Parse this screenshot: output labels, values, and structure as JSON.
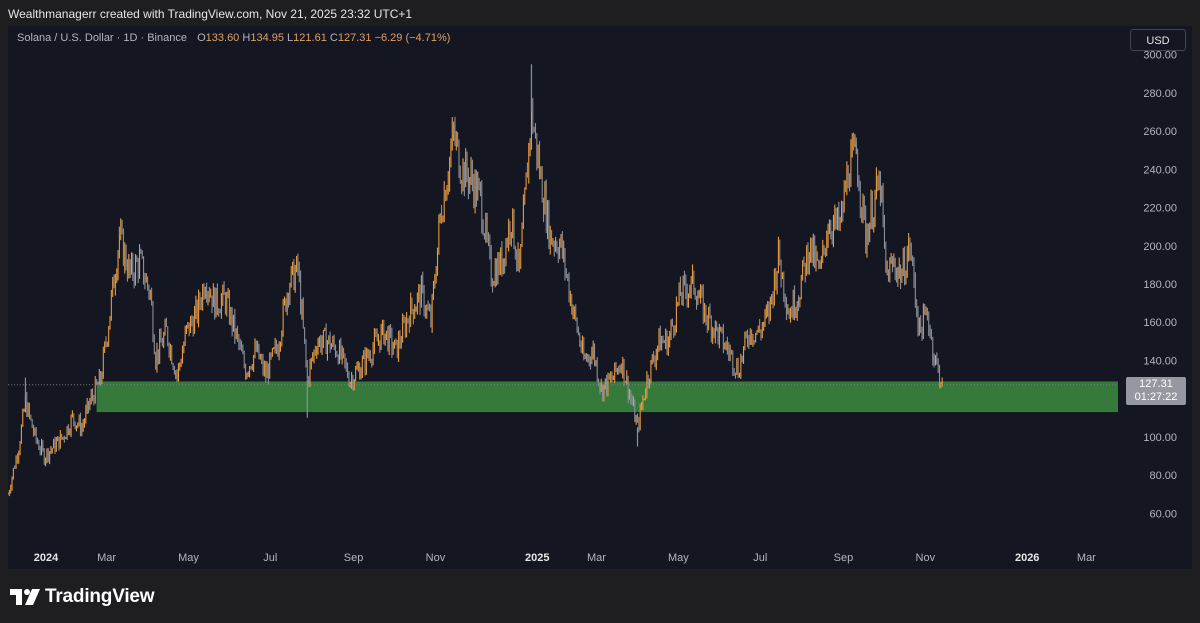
{
  "header": {
    "credit": "Wealthmanagerr created with TradingView.com, Nov 21, 2025 23:32 UTC+1"
  },
  "legend": {
    "symbol": "Solana / U.S. Dollar · 1D · Binance",
    "open_label": "O",
    "open": "133.60",
    "high_label": "H",
    "high": "134.95",
    "low_label": "L",
    "low": "121.61",
    "close_label": "C",
    "close": "127.31",
    "change": "−6.29 (−4.71%)"
  },
  "currency_button": "USD",
  "price_tag": {
    "price": "127.31",
    "countdown": "01:27:22"
  },
  "brand": {
    "name": "TradingView"
  },
  "colors": {
    "background": "#141722",
    "candle": "#e89a3c",
    "wick": "#8a8f9c",
    "zone": "#3b8c3e",
    "grid_text": "#b2b5be"
  },
  "chart_data": {
    "type": "line",
    "series_style": "ohlc-bars",
    "ylim": [
      45,
      315
    ],
    "y_ticks": [
      60,
      80,
      100,
      120,
      140,
      160,
      180,
      200,
      220,
      240,
      260,
      280,
      300
    ],
    "y_tick_labels": [
      "60.00",
      "80.00",
      "100.00",
      "",
      "140.00",
      "160.00",
      "180.00",
      "200.00",
      "220.00",
      "240.00",
      "260.00",
      "280.00",
      "300.00"
    ],
    "x_range": [
      "2023-12-26",
      "2026-04-01"
    ],
    "x_ticks": [
      {
        "date": "2024-01-01",
        "label": "2024",
        "bold": true
      },
      {
        "date": "2024-03-01",
        "label": "Mar"
      },
      {
        "date": "2024-05-01",
        "label": "May"
      },
      {
        "date": "2024-07-01",
        "label": "Jul"
      },
      {
        "date": "2024-09-01",
        "label": "Sep"
      },
      {
        "date": "2024-11-01",
        "label": "Nov"
      },
      {
        "date": "2025-01-01",
        "label": "2025",
        "bold": true
      },
      {
        "date": "2025-03-01",
        "label": "Mar"
      },
      {
        "date": "2025-05-01",
        "label": "May"
      },
      {
        "date": "2025-07-01",
        "label": "Jul"
      },
      {
        "date": "2025-09-01",
        "label": "Sep"
      },
      {
        "date": "2025-11-01",
        "label": "Nov"
      },
      {
        "date": "2026-01-01",
        "label": "2026",
        "bold": true
      },
      {
        "date": "2026-03-01",
        "label": "Mar"
      }
    ],
    "support_zone": {
      "from_date": "2024-03-01",
      "low": 113,
      "high": 129
    },
    "last_price": 127.31,
    "price_path": [
      [
        "2023-12-26",
        70
      ],
      [
        "2024-01-03",
        95
      ],
      [
        "2024-01-08",
        118
      ],
      [
        "2024-01-15",
        100
      ],
      [
        "2024-01-22",
        90
      ],
      [
        "2024-01-29",
        95
      ],
      [
        "2024-02-05",
        100
      ],
      [
        "2024-02-12",
        110
      ],
      [
        "2024-02-19",
        105
      ],
      [
        "2024-02-26",
        120
      ],
      [
        "2024-03-04",
        130
      ],
      [
        "2024-03-10",
        160
      ],
      [
        "2024-03-18",
        205
      ],
      [
        "2024-03-26",
        185
      ],
      [
        "2024-04-02",
        192
      ],
      [
        "2024-04-10",
        175
      ],
      [
        "2024-04-14",
        142
      ],
      [
        "2024-04-22",
        155
      ],
      [
        "2024-04-30",
        132
      ],
      [
        "2024-05-07",
        155
      ],
      [
        "2024-05-15",
        165
      ],
      [
        "2024-05-21",
        183
      ],
      [
        "2024-05-28",
        170
      ],
      [
        "2024-06-05",
        172
      ],
      [
        "2024-06-12",
        155
      ],
      [
        "2024-06-20",
        135
      ],
      [
        "2024-06-28",
        145
      ],
      [
        "2024-07-05",
        132
      ],
      [
        "2024-07-14",
        148
      ],
      [
        "2024-07-22",
        180
      ],
      [
        "2024-07-29",
        188
      ],
      [
        "2024-08-05",
        130
      ],
      [
        "2024-08-12",
        150
      ],
      [
        "2024-08-20",
        150
      ],
      [
        "2024-08-28",
        145
      ],
      [
        "2024-09-06",
        130
      ],
      [
        "2024-09-15",
        138
      ],
      [
        "2024-09-24",
        148
      ],
      [
        "2024-10-01",
        155
      ],
      [
        "2024-10-10",
        145
      ],
      [
        "2024-10-20",
        165
      ],
      [
        "2024-10-29",
        175
      ],
      [
        "2024-11-05",
        160
      ],
      [
        "2024-11-12",
        215
      ],
      [
        "2024-11-22",
        258
      ],
      [
        "2024-11-28",
        240
      ],
      [
        "2024-12-05",
        235
      ],
      [
        "2024-12-12",
        225
      ],
      [
        "2024-12-20",
        185
      ],
      [
        "2024-12-28",
        192
      ],
      [
        "2025-01-04",
        215
      ],
      [
        "2025-01-10",
        185
      ],
      [
        "2025-01-19",
        270
      ],
      [
        "2025-01-26",
        235
      ],
      [
        "2025-02-02",
        205
      ],
      [
        "2025-02-10",
        200
      ],
      [
        "2025-02-18",
        170
      ],
      [
        "2025-02-27",
        140
      ],
      [
        "2025-03-06",
        145
      ],
      [
        "2025-03-12",
        125
      ],
      [
        "2025-03-20",
        130
      ],
      [
        "2025-03-27",
        140
      ],
      [
        "2025-04-03",
        120
      ],
      [
        "2025-04-08",
        105
      ],
      [
        "2025-04-15",
        130
      ],
      [
        "2025-04-24",
        150
      ],
      [
        "2025-05-01",
        150
      ],
      [
        "2025-05-10",
        175
      ],
      [
        "2025-05-20",
        180
      ],
      [
        "2025-05-28",
        165
      ],
      [
        "2025-06-06",
        155
      ],
      [
        "2025-06-15",
        145
      ],
      [
        "2025-06-22",
        135
      ],
      [
        "2025-06-30",
        155
      ],
      [
        "2025-07-08",
        155
      ],
      [
        "2025-07-15",
        165
      ],
      [
        "2025-07-22",
        195
      ],
      [
        "2025-07-30",
        165
      ],
      [
        "2025-08-06",
        175
      ],
      [
        "2025-08-14",
        200
      ],
      [
        "2025-08-22",
        185
      ],
      [
        "2025-08-28",
        212
      ],
      [
        "2025-09-06",
        210
      ],
      [
        "2025-09-12",
        240
      ],
      [
        "2025-09-18",
        248
      ],
      [
        "2025-09-25",
        205
      ],
      [
        "2025-10-02",
        225
      ],
      [
        "2025-10-06",
        232
      ],
      [
        "2025-10-10",
        185
      ],
      [
        "2025-10-16",
        190
      ],
      [
        "2025-10-22",
        185
      ],
      [
        "2025-10-28",
        200
      ],
      [
        "2025-11-04",
        155
      ],
      [
        "2025-11-10",
        165
      ],
      [
        "2025-11-15",
        142
      ],
      [
        "2025-11-21",
        127.31
      ]
    ],
    "spikes": [
      [
        "2024-01-08",
        131
      ],
      [
        "2024-03-18",
        210
      ],
      [
        "2024-08-05",
        110
      ],
      [
        "2024-11-22",
        265
      ],
      [
        "2025-01-19",
        295
      ],
      [
        "2025-04-08",
        95
      ],
      [
        "2025-09-18",
        254
      ]
    ]
  }
}
